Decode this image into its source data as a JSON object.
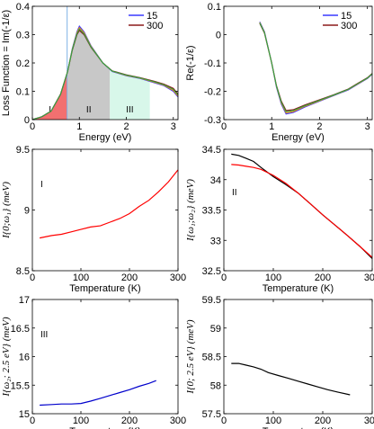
{
  "chart_data": [
    {
      "type": "area",
      "ylabel": "Loss Function = Im(-1/ε)",
      "xlabel": "Energy (eV)",
      "xlim": [
        0,
        3.1
      ],
      "ylim": [
        0,
        0.4
      ],
      "xticks": [
        "0",
        "1",
        "2",
        "3"
      ],
      "yticks": [
        "0",
        "0.1",
        "0.2",
        "0.3",
        "0.4"
      ],
      "legend": {
        "placement": "top-right",
        "entries": [
          {
            "name": "15",
            "color": "#3a3aff"
          },
          {
            "name": "300",
            "color": "#8b1a1a"
          }
        ]
      },
      "grid": false,
      "regions": [
        {
          "label": "I",
          "x_range": [
            0,
            0.75
          ],
          "color": "#f27070"
        },
        {
          "label": "II",
          "x_range": [
            0.75,
            1.65
          ],
          "color": "#c8c8c8"
        },
        {
          "label": "III",
          "x_range": [
            1.65,
            2.5
          ],
          "color": "#d8f7ea"
        }
      ],
      "vline_x": 0.74,
      "series": [
        {
          "name": "15",
          "color": "#3a3aff",
          "x": [
            0,
            0.2,
            0.4,
            0.6,
            0.75,
            0.85,
            0.95,
            1.0,
            1.1,
            1.25,
            1.5,
            1.7,
            2.0,
            2.3,
            2.6,
            2.8,
            3.0,
            3.1
          ],
          "y": [
            0,
            0.01,
            0.03,
            0.09,
            0.17,
            0.25,
            0.31,
            0.33,
            0.31,
            0.26,
            0.2,
            0.17,
            0.155,
            0.145,
            0.13,
            0.12,
            0.1,
            0.08
          ]
        },
        {
          "name": "300",
          "color": "#8b1a1a",
          "x": [
            0,
            0.2,
            0.4,
            0.6,
            0.75,
            0.85,
            0.95,
            1.0,
            1.1,
            1.25,
            1.5,
            1.7,
            2.0,
            2.3,
            2.6,
            2.8,
            3.0,
            3.1
          ],
          "y": [
            0,
            0.01,
            0.03,
            0.09,
            0.17,
            0.245,
            0.3,
            0.315,
            0.3,
            0.255,
            0.2,
            0.172,
            0.158,
            0.148,
            0.135,
            0.125,
            0.11,
            0.09
          ]
        }
      ]
    },
    {
      "type": "line",
      "ylabel": "Re(-1/ε)",
      "xlabel": "Energy (eV)",
      "xlim": [
        0,
        3.1
      ],
      "ylim": [
        -0.3,
        0.1
      ],
      "xticks": [
        "0",
        "1",
        "2",
        "3"
      ],
      "yticks": [
        "-0.3",
        "-0.2",
        "-0.1",
        "0",
        "0.1"
      ],
      "legend": {
        "placement": "top-right",
        "entries": [
          {
            "name": "15",
            "color": "#3a3aff"
          },
          {
            "name": "300",
            "color": "#8b1a1a"
          }
        ]
      },
      "series": [
        {
          "name": "15",
          "color": "#3a3aff",
          "x": [
            0.75,
            0.85,
            1.0,
            1.1,
            1.2,
            1.3,
            1.45,
            1.7,
            2.0,
            2.3,
            2.6,
            2.8,
            3.0,
            3.1
          ],
          "y": [
            0.045,
            0.01,
            -0.1,
            -0.185,
            -0.245,
            -0.28,
            -0.275,
            -0.255,
            -0.235,
            -0.215,
            -0.195,
            -0.175,
            -0.155,
            -0.14
          ]
        },
        {
          "name": "300",
          "color": "#8b1a1a",
          "x": [
            0.75,
            0.85,
            1.0,
            1.1,
            1.2,
            1.3,
            1.45,
            1.7,
            2.0,
            2.3,
            2.6,
            2.8,
            3.0,
            3.1
          ],
          "y": [
            0.04,
            0.005,
            -0.1,
            -0.18,
            -0.235,
            -0.268,
            -0.265,
            -0.248,
            -0.23,
            -0.212,
            -0.192,
            -0.172,
            -0.152,
            -0.137
          ]
        }
      ]
    },
    {
      "type": "line",
      "ylabel": "I{0;ω₁} (meV)",
      "xlabel": "Temperature (K)",
      "xlim": [
        0,
        300
      ],
      "ylim": [
        8.5,
        9.5
      ],
      "xticks": [
        "0",
        "100",
        "200",
        "300"
      ],
      "yticks": [
        "8.5",
        "9",
        "9.5"
      ],
      "annotation": "I",
      "series": [
        {
          "color": "#ff0000",
          "x": [
            15,
            40,
            60,
            80,
            100,
            120,
            140,
            160,
            180,
            200,
            220,
            240,
            260,
            280,
            300
          ],
          "y": [
            8.77,
            8.79,
            8.8,
            8.82,
            8.84,
            8.86,
            8.87,
            8.9,
            8.93,
            8.97,
            9.03,
            9.08,
            9.15,
            9.23,
            9.33
          ]
        }
      ]
    },
    {
      "type": "line",
      "ylabel": "I{ω₁;ω₂} (meV)",
      "xlabel": "Temperature (K)",
      "xlim": [
        0,
        300
      ],
      "ylim": [
        32.5,
        34.5
      ],
      "xticks": [
        "0",
        "100",
        "200",
        "300"
      ],
      "yticks": [
        "32.5",
        "33",
        "33.5",
        "34",
        "34.5"
      ],
      "annotation": "II",
      "series": [
        {
          "color": "#000000",
          "x": [
            15,
            30,
            45,
            60,
            75,
            100,
            125,
            150,
            175,
            200,
            225,
            250,
            275,
            300
          ],
          "y": [
            34.42,
            34.4,
            34.35,
            34.3,
            34.2,
            34.05,
            33.92,
            33.78,
            33.6,
            33.42,
            33.25,
            33.08,
            32.9,
            32.7
          ]
        },
        {
          "color": "#ff0000",
          "x": [
            15,
            30,
            45,
            60,
            75,
            100,
            125,
            150,
            175,
            200,
            225,
            250,
            275,
            300
          ],
          "y": [
            34.25,
            34.24,
            34.22,
            34.2,
            34.17,
            34.07,
            33.94,
            33.78,
            33.6,
            33.42,
            33.25,
            33.08,
            32.9,
            32.72
          ]
        }
      ]
    },
    {
      "type": "line",
      "ylabel": "I{ω₂; 2.5 eV} (meV)",
      "xlabel": "Temperature (K)",
      "xlim": [
        0,
        300
      ],
      "ylim": [
        15,
        17
      ],
      "xticks": [
        "0",
        "100",
        "200",
        "300"
      ],
      "yticks": [
        "15",
        "15.5",
        "16",
        "16.5",
        "17"
      ],
      "annotation": "III",
      "series": [
        {
          "color": "#0000cc",
          "x": [
            15,
            40,
            60,
            80,
            100,
            120,
            140,
            160,
            180,
            200,
            220,
            240,
            255
          ],
          "y": [
            15.15,
            15.16,
            15.17,
            15.17,
            15.18,
            15.22,
            15.27,
            15.32,
            15.37,
            15.42,
            15.48,
            15.53,
            15.58
          ]
        }
      ]
    },
    {
      "type": "line",
      "ylabel": "I{0; 2.5 eV} (meV)",
      "xlabel": "Temperature (K)",
      "xlim": [
        0,
        300
      ],
      "ylim": [
        57.5,
        59.5
      ],
      "xticks": [
        "0",
        "100",
        "200",
        "300"
      ],
      "yticks": [
        "57.5",
        "58",
        "58.5",
        "59",
        "59.5"
      ],
      "series": [
        {
          "color": "#000000",
          "x": [
            15,
            30,
            45,
            60,
            75,
            90,
            110,
            130,
            150,
            170,
            190,
            210,
            230,
            255
          ],
          "y": [
            58.38,
            58.38,
            58.35,
            58.32,
            58.28,
            58.22,
            58.17,
            58.12,
            58.07,
            58.02,
            57.97,
            57.92,
            57.88,
            57.83
          ]
        }
      ]
    }
  ]
}
